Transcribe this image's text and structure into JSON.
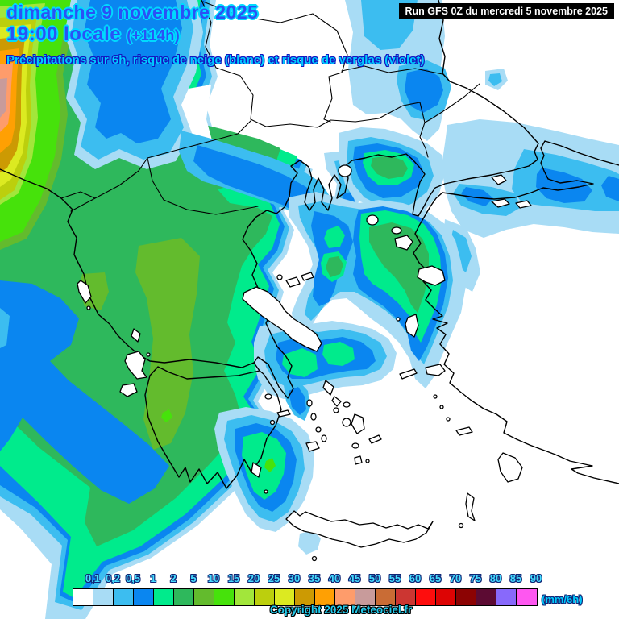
{
  "header": {
    "date_line": "dimanche 9 novembre 2025",
    "time_line": "19:00 locale",
    "forecast_offset": "(+114h)",
    "subtitle": "Précipitations sur 6h, risque de neige (blanc) et risque de verglas (violet)"
  },
  "run_info": {
    "label": "Run GFS 0Z du mercredi 5 novembre 2025"
  },
  "legend": {
    "unit": "(mm/6h)",
    "tick_labels": [
      "0,1",
      "0,2",
      "0,5",
      "1",
      "2",
      "5",
      "10",
      "15",
      "20",
      "25",
      "30",
      "35",
      "40",
      "45",
      "50",
      "55",
      "60",
      "65",
      "70",
      "75",
      "80",
      "85",
      "90"
    ],
    "colors": [
      "#ffffff",
      "#a8dcf5",
      "#3cbdf0",
      "#0a86f0",
      "#00eb8c",
      "#2eb85c",
      "#63bb2d",
      "#46e20b",
      "#a2e63b",
      "#bccf0d",
      "#dcea21",
      "#cc9a03",
      "#ffa003",
      "#fe9c6b",
      "#c89b9b",
      "#c96c35",
      "#cc3632",
      "#fe0d0d",
      "#dd0404",
      "#8c0303",
      "#5c0b33",
      "#8869fb",
      "#fe57f0"
    ]
  },
  "copyright": {
    "text": "Copyright 2025 Meteociel.fr"
  }
}
